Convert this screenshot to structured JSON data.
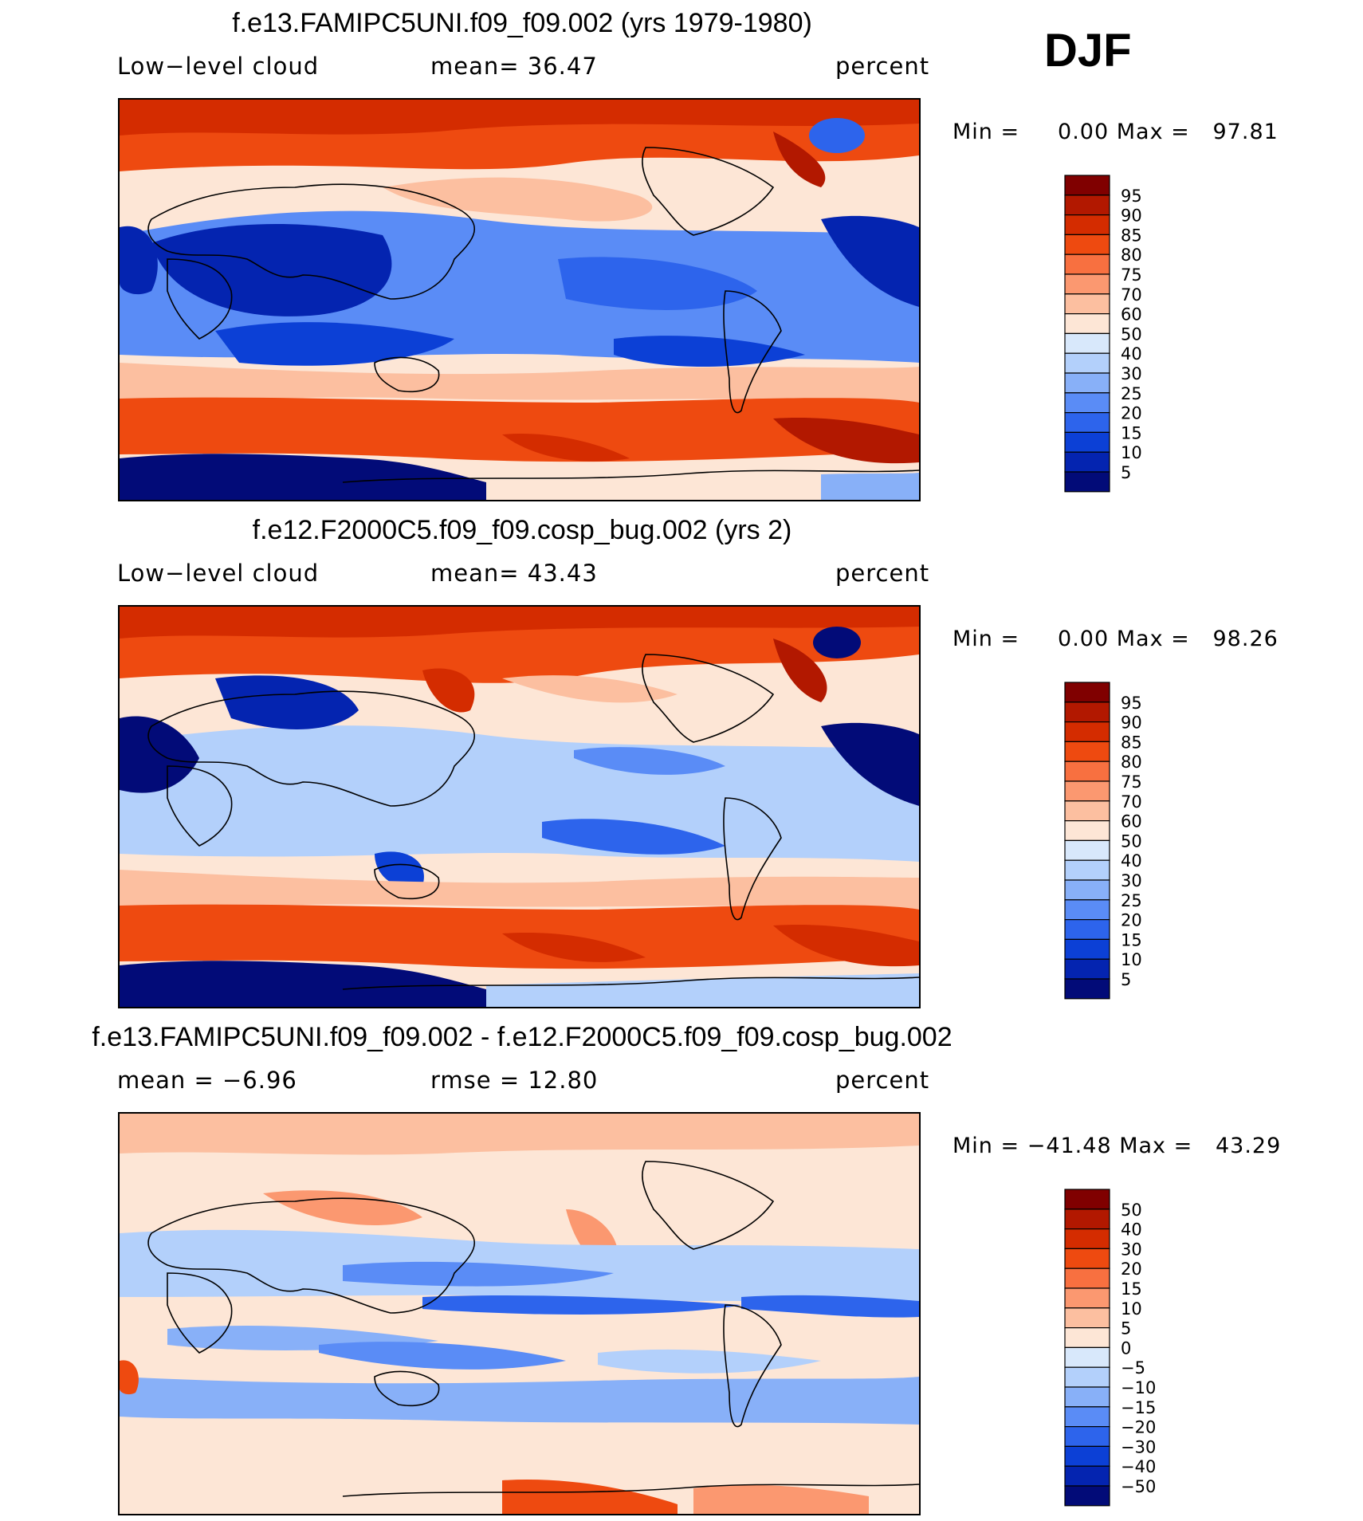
{
  "season": "DJF",
  "panels": [
    {
      "title": "f.e13.FAMIPC5UNI.f09_f09.002 (yrs 1979-1980)",
      "left_label": "Low−level cloud",
      "middle_label": "mean=   36.47",
      "units": "percent",
      "minmax": "Min =     0.00 Max =   97.81",
      "colorbar": {
        "labels": [
          "95",
          "90",
          "85",
          "80",
          "75",
          "70",
          "60",
          "50",
          "40",
          "30",
          "25",
          "20",
          "15",
          "10",
          "5"
        ],
        "colors": [
          "#800000",
          "#b21800",
          "#d42c00",
          "#ee4a10",
          "#f87040",
          "#fb9870",
          "#fcbfa0",
          "#fde6d6",
          "#d8e8fb",
          "#b3d0fb",
          "#88b0f8",
          "#5a8cf6",
          "#2d64ec",
          "#0c40d6",
          "#0424b0",
          "#020b78"
        ]
      }
    },
    {
      "title": "f.e12.F2000C5.f09_f09.cosp_bug.002 (yrs 2)",
      "left_label": "Low−level cloud",
      "middle_label": "mean=   43.43",
      "units": "percent",
      "minmax": "Min =     0.00 Max =   98.26",
      "colorbar": {
        "labels": [
          "95",
          "90",
          "85",
          "80",
          "75",
          "70",
          "60",
          "50",
          "40",
          "30",
          "25",
          "20",
          "15",
          "10",
          "5"
        ],
        "colors": [
          "#800000",
          "#b21800",
          "#d42c00",
          "#ee4a10",
          "#f87040",
          "#fb9870",
          "#fcbfa0",
          "#fde6d6",
          "#d8e8fb",
          "#b3d0fb",
          "#88b0f8",
          "#5a8cf6",
          "#2d64ec",
          "#0c40d6",
          "#0424b0",
          "#020b78"
        ]
      }
    },
    {
      "title": "f.e13.FAMIPC5UNI.f09_f09.002 - f.e12.F2000C5.f09_f09.cosp_bug.002",
      "left_label": "mean =   −6.96",
      "middle_label": "rmse =   12.80",
      "units": "percent",
      "minmax": "Min = −41.48 Max =   43.29",
      "colorbar": {
        "labels": [
          "50",
          "40",
          "30",
          "20",
          "15",
          "10",
          "5",
          "0",
          "−5",
          "−10",
          "−15",
          "−20",
          "−30",
          "−40",
          "−50"
        ],
        "colors": [
          "#800000",
          "#b21800",
          "#d42c00",
          "#ee4a10",
          "#f87040",
          "#fb9870",
          "#fcbfa0",
          "#fde6d6",
          "#d8e8fb",
          "#b3d0fb",
          "#88b0f8",
          "#5a8cf6",
          "#2d64ec",
          "#0c40d6",
          "#0424b0",
          "#020b78"
        ]
      }
    }
  ]
}
